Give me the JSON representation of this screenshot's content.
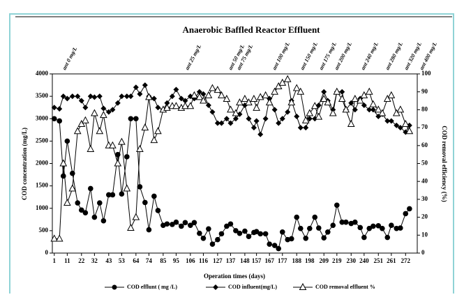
{
  "chart_data": {
    "type": "line",
    "title": "Anaerobic Baffled Reactor Effluent",
    "xlabel": "Operation times (days)",
    "ylabel": "COD concentration (mg/L)",
    "y2label": "COD removal efficiency (%)",
    "annotations": [
      "ant 0 mg/L",
      "ant 25 mg/L",
      "ant 50 mg/L",
      "ant 75 mg/L",
      "ant 100 mg/L",
      "ant 150 mg/L",
      "ant 175 mg/L",
      "ant 200 mg/L",
      "ant 240 mg/L",
      "ant 280 mg/L",
      "ant 320 mg/L",
      "ant 400 mg/L"
    ],
    "x": [
      1,
      5,
      8,
      11,
      15,
      19,
      22,
      25,
      29,
      32,
      36,
      39,
      43,
      46,
      50,
      53,
      57,
      60,
      64,
      67,
      71,
      74,
      78,
      81,
      85,
      88,
      92,
      95,
      99,
      102,
      106,
      109,
      113,
      116,
      120,
      123,
      127,
      130,
      134,
      137,
      141,
      144,
      148,
      151,
      155,
      157,
      160,
      164,
      167,
      171,
      174,
      177,
      181,
      184,
      188,
      191,
      195,
      198,
      202,
      205,
      209,
      212,
      216,
      219,
      223,
      226,
      230,
      233,
      237,
      240,
      244,
      247,
      251,
      254,
      258,
      261,
      265,
      268,
      272,
      275
    ],
    "xlim": [
      -0.5,
      281
    ],
    "xticks": [
      1,
      11,
      22,
      32,
      43,
      53,
      64,
      74,
      85,
      95,
      106,
      116,
      127,
      137,
      148,
      157,
      167,
      177,
      188,
      198,
      209,
      219,
      230,
      240,
      251,
      261,
      272
    ],
    "ylim": [
      0,
      4000
    ],
    "yticks": [
      0,
      500,
      1000,
      1500,
      2000,
      2500,
      3000,
      3500,
      4000
    ],
    "y2lim": [
      0,
      100
    ],
    "y2ticks": [
      0,
      10,
      20,
      30,
      40,
      50,
      60,
      70,
      80,
      90,
      100
    ],
    "series": [
      {
        "name": "COD efflunt ( mg /L)",
        "color": "#000000",
        "marker": "circle",
        "values": [
          3000,
          2950,
          1720,
          2500,
          1780,
          1120,
          960,
          900,
          1440,
          800,
          1120,
          720,
          1300,
          1300,
          2200,
          1320,
          2150,
          3000,
          3000,
          1480,
          1130,
          520,
          1270,
          950,
          620,
          650,
          640,
          690,
          600,
          680,
          620,
          680,
          440,
          330,
          540,
          200,
          300,
          430,
          600,
          650,
          500,
          440,
          490,
          370,
          460,
          480,
          430,
          430,
          200,
          170,
          100,
          470,
          300,
          320,
          800,
          550,
          330,
          550,
          800,
          560,
          340,
          470,
          620,
          1070,
          690,
          690,
          660,
          690,
          570,
          350,
          550,
          600,
          610,
          550,
          350,
          620,
          550,
          560,
          880,
          990
        ]
      },
      {
        "name": "COD influent(mg/L)",
        "color": "#000000",
        "marker": "diamond",
        "values": [
          3250,
          3220,
          3500,
          3450,
          3500,
          3500,
          3400,
          3250,
          3500,
          3480,
          3500,
          3230,
          3150,
          3200,
          3350,
          3500,
          3500,
          3500,
          3700,
          3550,
          3750,
          3500,
          3450,
          3250,
          3200,
          3350,
          3500,
          3650,
          3450,
          3400,
          3500,
          3450,
          3600,
          3550,
          3300,
          3150,
          2900,
          2900,
          3000,
          2900,
          3000,
          3100,
          3300,
          3000,
          2800,
          2950,
          2650,
          3000,
          3450,
          3200,
          2900,
          3000,
          3150,
          3400,
          3050,
          2800,
          2800,
          3000,
          3000,
          3300,
          3600,
          3400,
          3200,
          3600,
          3600,
          3200,
          3350,
          3200,
          3450,
          3300,
          3200,
          3200,
          3050,
          3100,
          2950,
          2950,
          2850,
          2800,
          2700,
          2850
        ]
      },
      {
        "name": "COD removal effluent %",
        "color": "#000000",
        "marker": "triangle",
        "axis": "y2",
        "values": [
          8,
          8,
          50,
          28,
          36,
          68,
          72,
          74,
          58,
          78,
          68,
          77,
          60,
          60,
          50,
          62,
          36,
          14,
          20,
          58,
          70,
          87,
          63,
          68,
          80,
          81,
          82,
          82,
          81,
          82,
          82,
          88,
          87,
          85,
          88,
          92,
          91,
          88,
          86,
          80,
          78,
          84,
          86,
          84,
          86,
          81,
          87,
          88,
          84,
          90,
          93,
          95,
          97,
          84,
          92,
          90,
          74,
          78,
          82,
          76,
          86,
          84,
          78,
          90,
          86,
          80,
          72,
          86,
          85,
          88,
          90,
          83,
          80,
          78,
          86,
          88,
          78,
          80,
          72,
          68
        ]
      }
    ]
  }
}
